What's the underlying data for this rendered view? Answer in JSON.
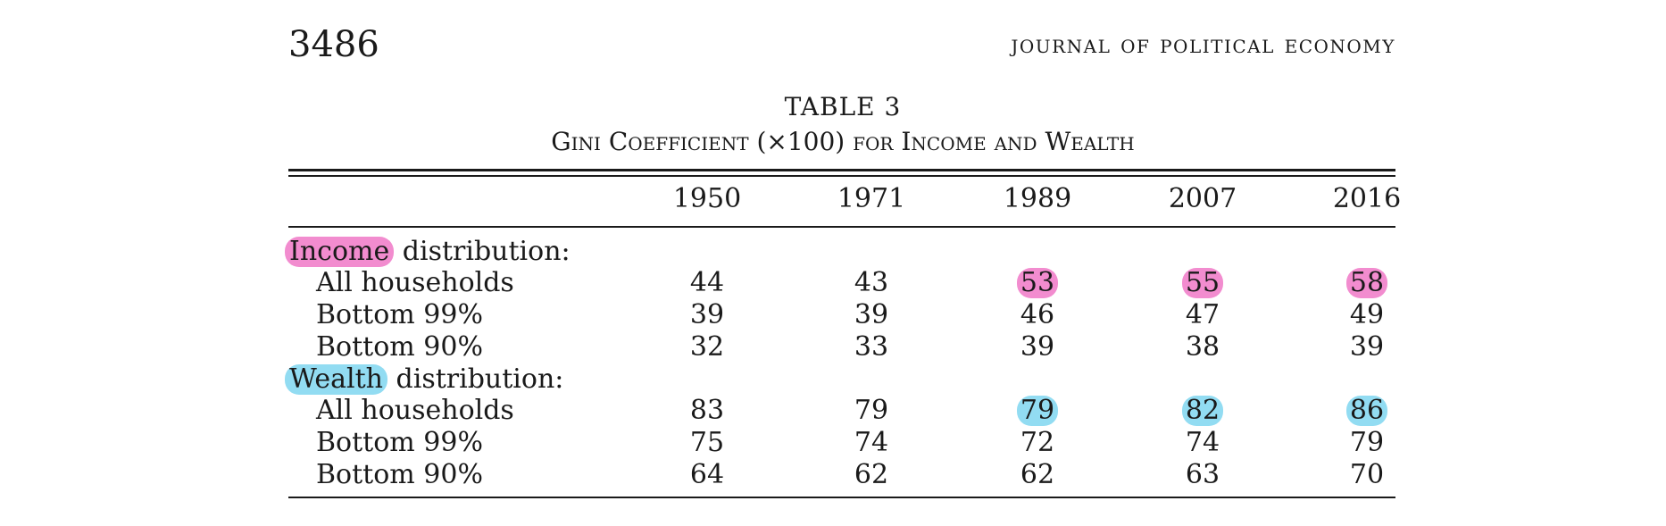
{
  "header": {
    "page_number": "3486",
    "journal": "Journal of Political Economy"
  },
  "table": {
    "label": "TABLE 3",
    "caption": "Gini Coefficient (×100) for Income and Wealth",
    "years": [
      "1950",
      "1971",
      "1989",
      "2007",
      "2016"
    ],
    "income": {
      "highlight_word": "Income",
      "heading_rest": " distribution:",
      "highlight_color": "#f28ccf",
      "rows": [
        {
          "label": "All households",
          "values": [
            "44",
            "43",
            "53",
            "55",
            "58"
          ]
        },
        {
          "label": "Bottom 99%",
          "values": [
            "39",
            "39",
            "46",
            "47",
            "49"
          ]
        },
        {
          "label": "Bottom 90%",
          "values": [
            "32",
            "33",
            "39",
            "38",
            "39"
          ]
        }
      ]
    },
    "wealth": {
      "highlight_word": "Wealth",
      "heading_rest": " distribution:",
      "highlight_color": "#92dcf2",
      "rows": [
        {
          "label": "All households",
          "values": [
            "83",
            "79",
            "79",
            "82",
            "86"
          ]
        },
        {
          "label": "Bottom 99%",
          "values": [
            "75",
            "74",
            "72",
            "74",
            "79"
          ]
        },
        {
          "label": "Bottom 90%",
          "values": [
            "64",
            "62",
            "62",
            "63",
            "70"
          ]
        }
      ]
    }
  }
}
